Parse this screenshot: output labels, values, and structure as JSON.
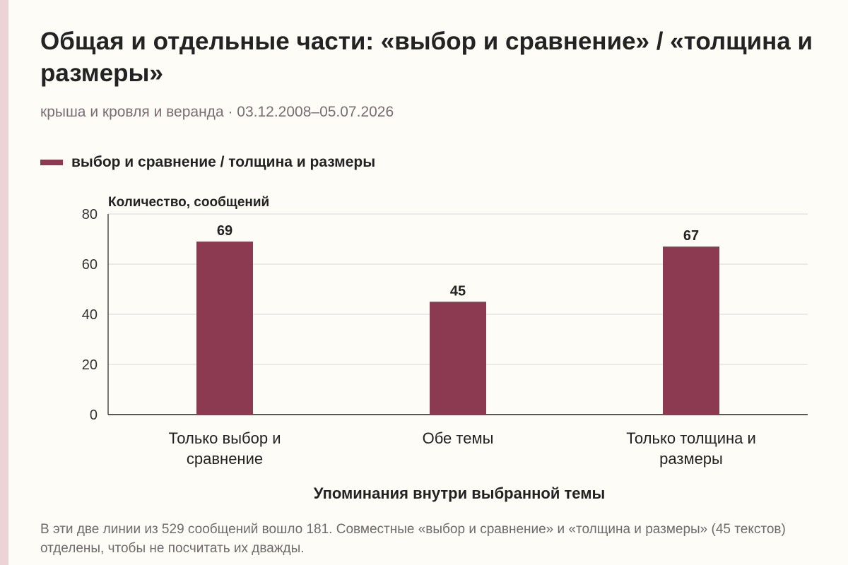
{
  "header": {
    "title": "Общая и отдельные части: «выбор и сравнение» / «толщина и размеры»",
    "subtitle": "крыша и кровля и веранда · 03.12.2008–05.07.2026"
  },
  "legend": {
    "label": "выбор и сравнение / толщина и размеры"
  },
  "colors": {
    "bar": "#8b3a52",
    "accent_strip": "#ecd3d8",
    "grid": "#d9d9d9",
    "axis": "#222222"
  },
  "chart_data": {
    "type": "bar",
    "categories": [
      [
        "Только выбор и",
        "сравнение"
      ],
      [
        "Обе темы"
      ],
      [
        "Только толщина и",
        "размеры"
      ]
    ],
    "series": [
      {
        "name": "выбор и сравнение / толщина и размеры",
        "values": [
          69,
          45,
          67
        ]
      }
    ],
    "data_labels": [
      "69",
      "45",
      "67"
    ],
    "ylabel": "Количество, сообщений",
    "xlabel": "Упоминания внутри выбранной темы",
    "ylim": [
      0,
      80
    ],
    "yticks": [
      0,
      20,
      40,
      60,
      80
    ],
    "grid": true,
    "legend_position": "top-left"
  },
  "footer": {
    "note": "В эти две линии из 529 сообщений вошло 181. Совместные «выбор и сравнение» и «толщина и размеры» (45 текстов) отделены, чтобы не посчитать их дважды."
  }
}
